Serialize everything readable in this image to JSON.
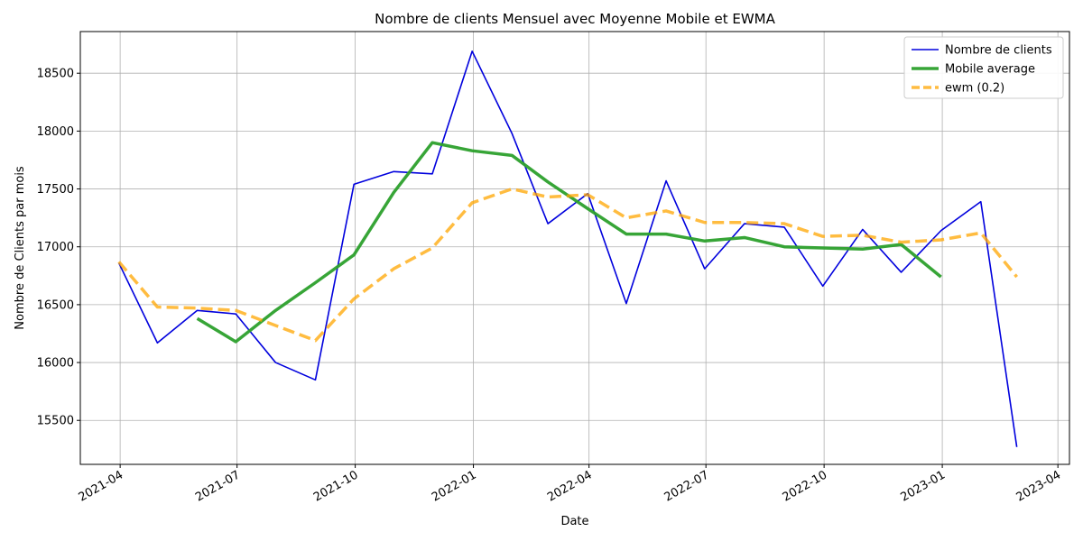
{
  "chart_data": {
    "type": "line",
    "title": "Nombre de clients Mensuel avec Moyenne Mobile et EWMA",
    "xlabel": "Date",
    "ylabel": "Nombre de Clients par mois",
    "xlim": [
      "2021-03-01",
      "2023-04-10"
    ],
    "ylim": [
      15120,
      18860
    ],
    "grid": true,
    "legend_position": "top-right",
    "x_ticks": [
      "2021-04",
      "2021-07",
      "2021-10",
      "2022-01",
      "2022-04",
      "2022-07",
      "2022-10",
      "2023-01",
      "2023-04"
    ],
    "y_ticks": [
      15500,
      16000,
      16500,
      17000,
      17500,
      18000,
      18500
    ],
    "series": [
      {
        "name": "Nombre de clients",
        "color": "#0000dd",
        "style": "solid",
        "x": [
          "2021-03-31",
          "2021-04-30",
          "2021-05-31",
          "2021-06-30",
          "2021-07-31",
          "2021-08-31",
          "2021-09-30",
          "2021-10-31",
          "2021-11-30",
          "2021-12-31",
          "2022-01-31",
          "2022-02-28",
          "2022-03-31",
          "2022-04-30",
          "2022-05-31",
          "2022-06-30",
          "2022-07-31",
          "2022-08-31",
          "2022-09-30",
          "2022-10-31",
          "2022-11-30",
          "2022-12-31",
          "2023-01-31",
          "2023-02-28"
        ],
        "values": [
          16860,
          16170,
          16450,
          16420,
          16000,
          15850,
          17540,
          17650,
          17630,
          18690,
          17980,
          17200,
          17460,
          16510,
          17570,
          16810,
          17200,
          17170,
          16660,
          17150,
          16780,
          17140,
          17390,
          15270
        ]
      },
      {
        "name": "Mobile average",
        "color": "#2ca02c",
        "style": "solid",
        "x": [
          "2021-05-31",
          "2021-06-30",
          "2021-07-31",
          "2021-08-31",
          "2021-09-30",
          "2021-10-31",
          "2021-11-30",
          "2021-12-31",
          "2022-01-31",
          "2022-02-28",
          "2022-03-31",
          "2022-04-30",
          "2022-05-31",
          "2022-06-30",
          "2022-07-31",
          "2022-08-31",
          "2022-09-30",
          "2022-10-31",
          "2022-11-30",
          "2022-12-31"
        ],
        "values": [
          16380,
          16180,
          16450,
          16690,
          16930,
          17470,
          17900,
          17830,
          17790,
          17560,
          17330,
          17110,
          17110,
          17050,
          17080,
          17000,
          16990,
          16980,
          17020,
          16740
        ]
      },
      {
        "name": "ewm (0.2)",
        "color": "#ffa500",
        "style": "dashed",
        "x": [
          "2021-03-31",
          "2021-04-30",
          "2021-05-31",
          "2021-06-30",
          "2021-07-31",
          "2021-08-31",
          "2021-09-30",
          "2021-10-31",
          "2021-11-30",
          "2021-12-31",
          "2022-01-31",
          "2022-02-28",
          "2022-03-31",
          "2022-04-30",
          "2022-05-31",
          "2022-06-30",
          "2022-07-31",
          "2022-08-31",
          "2022-09-30",
          "2022-10-31",
          "2022-11-30",
          "2022-12-31",
          "2023-01-31",
          "2023-02-28"
        ],
        "values": [
          16870,
          16480,
          16470,
          16450,
          16320,
          16190,
          16550,
          16810,
          16990,
          17380,
          17500,
          17430,
          17450,
          17250,
          17310,
          17210,
          17210,
          17200,
          17090,
          17100,
          17040,
          17060,
          17120,
          16740
        ]
      }
    ]
  }
}
